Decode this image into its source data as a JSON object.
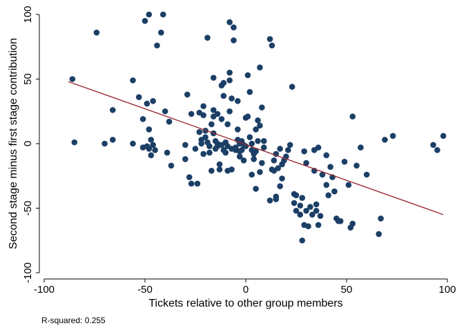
{
  "chart_data": {
    "type": "scatter",
    "title": "",
    "xlabel": "Tickets relative to other group members",
    "ylabel": "Second stage minus first stage contribution",
    "xlim": [
      -100,
      100
    ],
    "ylim": [
      -100,
      100
    ],
    "xticks": [
      -100,
      -50,
      0,
      50,
      100
    ],
    "yticks": [
      -100,
      -50,
      0,
      50,
      100
    ],
    "grid": false,
    "note": "R-squared: 0.255",
    "colors": {
      "points": "#1c3f66",
      "fit_line": "#9b2a32",
      "axis": "#000000"
    },
    "series": [
      {
        "values": [
          [
            -86,
            50
          ],
          [
            -85,
            1
          ],
          [
            -74,
            86
          ],
          [
            -70,
            0
          ],
          [
            -66,
            26
          ],
          [
            -66,
            3
          ],
          [
            -56,
            49
          ],
          [
            -56,
            0
          ],
          [
            -53,
            36
          ],
          [
            -51,
            19
          ],
          [
            -51,
            -3
          ],
          [
            -50,
            95
          ],
          [
            -49,
            -2
          ],
          [
            -49,
            31
          ],
          [
            -48,
            100
          ],
          [
            -48,
            -4
          ],
          [
            -48,
            11
          ],
          [
            -47,
            3
          ],
          [
            -47,
            -9
          ],
          [
            -46,
            33
          ],
          [
            -46,
            -1
          ],
          [
            -45,
            -5
          ],
          [
            -44,
            76
          ],
          [
            -42,
            86
          ],
          [
            -41,
            100
          ],
          [
            -40,
            25
          ],
          [
            -39,
            -7
          ],
          [
            -38,
            17
          ],
          [
            -37,
            -17
          ],
          [
            -30,
            -1
          ],
          [
            -30,
            -12
          ],
          [
            -29,
            38
          ],
          [
            -28,
            -26
          ],
          [
            -27,
            23
          ],
          [
            -27,
            -31
          ],
          [
            -25,
            -4
          ],
          [
            -24,
            -31
          ],
          [
            -23,
            9
          ],
          [
            -23,
            24
          ],
          [
            -22,
            0
          ],
          [
            -22,
            3
          ],
          [
            -21,
            29
          ],
          [
            -21,
            22
          ],
          [
            -21,
            -8
          ],
          [
            -20,
            10
          ],
          [
            -20,
            5
          ],
          [
            -19,
            82
          ],
          [
            -19,
            1
          ],
          [
            -18,
            -2
          ],
          [
            -18,
            -7
          ],
          [
            -17,
            15
          ],
          [
            -17,
            -21
          ],
          [
            -16,
            51
          ],
          [
            -16,
            26
          ],
          [
            -16,
            21
          ],
          [
            -16,
            8
          ],
          [
            -15,
            -4
          ],
          [
            -15,
            2
          ],
          [
            -14,
            0
          ],
          [
            -14,
            23
          ],
          [
            -14,
            -2
          ],
          [
            -13,
            -20
          ],
          [
            -13,
            -16
          ],
          [
            -12,
            -1
          ],
          [
            -12,
            19
          ],
          [
            -12,
            45
          ],
          [
            -11,
            37
          ],
          [
            -11,
            47
          ],
          [
            -11,
            -5
          ],
          [
            -10,
            -7
          ],
          [
            -10,
            1
          ],
          [
            -9,
            15
          ],
          [
            -9,
            -2
          ],
          [
            -9,
            -21
          ],
          [
            -8,
            25
          ],
          [
            -8,
            94
          ],
          [
            -8,
            55
          ],
          [
            -8,
            49
          ],
          [
            -7,
            35
          ],
          [
            -7,
            -4
          ],
          [
            -7,
            -20
          ],
          [
            -6,
            90
          ],
          [
            -6,
            80
          ],
          [
            -5,
            -5
          ],
          [
            -5,
            -3
          ],
          [
            -4,
            11
          ],
          [
            -4,
            3
          ],
          [
            -4,
            33
          ],
          [
            -3,
            -10
          ],
          [
            -3,
            -6
          ],
          [
            -3,
            0
          ],
          [
            -2,
            2
          ],
          [
            -2,
            -5
          ],
          [
            -1,
            -1
          ],
          [
            -1,
            -13
          ],
          [
            0,
            20
          ],
          [
            0,
            -2
          ],
          [
            1,
            53
          ],
          [
            1,
            21
          ],
          [
            2,
            40
          ],
          [
            2,
            5
          ],
          [
            3,
            -24
          ],
          [
            3,
            -5
          ],
          [
            3,
            0
          ],
          [
            4,
            -12
          ],
          [
            4,
            -8
          ],
          [
            5,
            -6
          ],
          [
            5,
            11
          ],
          [
            5,
            -35
          ],
          [
            6,
            2
          ],
          [
            6,
            18
          ],
          [
            7,
            14
          ],
          [
            7,
            59
          ],
          [
            7,
            -22
          ],
          [
            8,
            28
          ],
          [
            8,
            -15
          ],
          [
            9,
            2
          ],
          [
            9,
            -3
          ],
          [
            12,
            -44
          ],
          [
            12,
            81
          ],
          [
            13,
            76
          ],
          [
            13,
            -20
          ],
          [
            14,
            -21
          ],
          [
            14,
            -13
          ],
          [
            15,
            -43
          ],
          [
            15,
            -8
          ],
          [
            15,
            -41
          ],
          [
            16,
            -19
          ],
          [
            17,
            -4
          ],
          [
            17,
            -33
          ],
          [
            18,
            -27
          ],
          [
            18,
            -16
          ],
          [
            19,
            -13
          ],
          [
            20,
            -10
          ],
          [
            21,
            -5
          ],
          [
            22,
            -1
          ],
          [
            23,
            44
          ],
          [
            24,
            -46
          ],
          [
            24,
            -39
          ],
          [
            25,
            -52
          ],
          [
            25,
            -40
          ],
          [
            27,
            -55
          ],
          [
            27,
            -48
          ],
          [
            28,
            -42
          ],
          [
            28,
            -75
          ],
          [
            29,
            -63
          ],
          [
            29,
            -6
          ],
          [
            30,
            -15
          ],
          [
            30,
            -52
          ],
          [
            31,
            -64
          ],
          [
            32,
            -49
          ],
          [
            33,
            -55
          ],
          [
            34,
            -21
          ],
          [
            34,
            -5
          ],
          [
            35,
            -47
          ],
          [
            35,
            -52
          ],
          [
            36,
            -63
          ],
          [
            36,
            -3
          ],
          [
            37,
            -56
          ],
          [
            38,
            -24
          ],
          [
            40,
            -9
          ],
          [
            40,
            -32
          ],
          [
            41,
            -40
          ],
          [
            42,
            -18
          ],
          [
            43,
            -26
          ],
          [
            44,
            -37
          ],
          [
            45,
            -58
          ],
          [
            46,
            -60
          ],
          [
            47,
            -60
          ],
          [
            49,
            -14
          ],
          [
            51,
            -32
          ],
          [
            52,
            -65
          ],
          [
            53,
            -62
          ],
          [
            53,
            21
          ],
          [
            55,
            -17
          ],
          [
            57,
            -3
          ],
          [
            60,
            -24
          ],
          [
            66,
            -70
          ],
          [
            67,
            -58
          ],
          [
            69,
            3
          ],
          [
            73,
            6
          ],
          [
            93,
            -1
          ],
          [
            95,
            -5
          ],
          [
            98,
            6
          ]
        ]
      }
    ],
    "fit_line": {
      "x": [
        -88,
        98
      ],
      "y": [
        48,
        -55
      ]
    }
  }
}
